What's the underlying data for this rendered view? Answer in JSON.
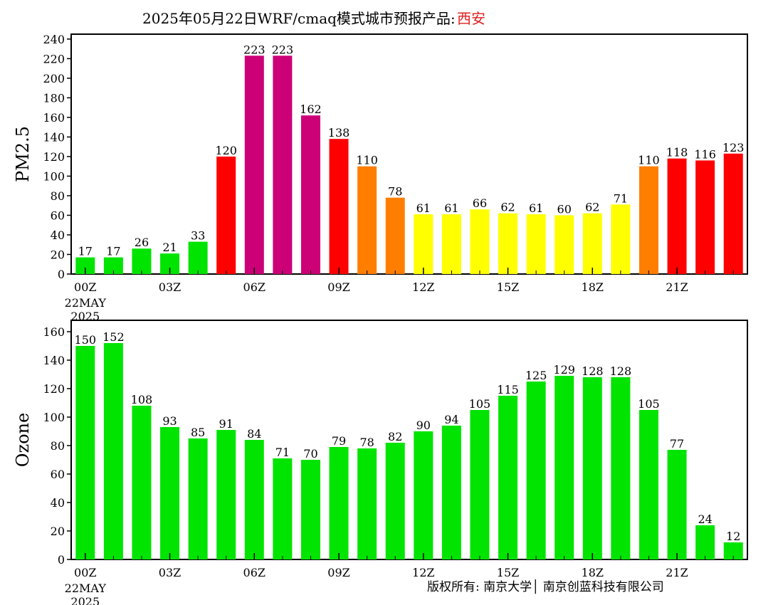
{
  "title": {
    "main": "2025年05月22日WRF/cmaq模式城市预报产品:",
    "city": "西安",
    "city_color": "#e02020"
  },
  "footer": {
    "copyright": "版权所有: 南京大学│ 南京创蓝科技有限公司"
  },
  "chart_data": [
    {
      "type": "bar",
      "ylabel": "PM2.5",
      "ylim": [
        0,
        245
      ],
      "yticks": [
        0,
        20,
        40,
        60,
        80,
        100,
        120,
        140,
        160,
        180,
        200,
        220,
        240
      ],
      "x_tick_labels": [
        "00Z",
        "03Z",
        "06Z",
        "09Z",
        "12Z",
        "15Z",
        "18Z",
        "21Z"
      ],
      "x_tick_hours": [
        0,
        3,
        6,
        9,
        12,
        15,
        18,
        21
      ],
      "date_label": [
        "22MAY",
        "2025"
      ],
      "hours": [
        0,
        1,
        2,
        3,
        4,
        5,
        6,
        7,
        8,
        9,
        10,
        11,
        12,
        13,
        14,
        15,
        16,
        17,
        18,
        19,
        20,
        21,
        22,
        23
      ],
      "values": [
        17,
        17,
        26,
        21,
        33,
        120,
        223,
        223,
        162,
        138,
        110,
        78,
        61,
        61,
        66,
        62,
        61,
        60,
        62,
        71,
        110,
        118,
        116,
        123
      ],
      "bar_colors": [
        "#00e400",
        "#00e400",
        "#00e400",
        "#00e400",
        "#00e400",
        "#ff0000",
        "#cc0077",
        "#cc0077",
        "#cc0077",
        "#ff0000",
        "#ff7e00",
        "#ff7e00",
        "#ffff00",
        "#ffff00",
        "#ffff00",
        "#ffff00",
        "#ffff00",
        "#ffff00",
        "#ffff00",
        "#ffff00",
        "#ff7e00",
        "#ff0000",
        "#ff0000",
        "#ff0000"
      ]
    },
    {
      "type": "bar",
      "ylabel": "Ozone",
      "ylim": [
        0,
        168
      ],
      "yticks": [
        0,
        20,
        40,
        60,
        80,
        100,
        120,
        140,
        160
      ],
      "x_tick_labels": [
        "00Z",
        "03Z",
        "06Z",
        "09Z",
        "12Z",
        "15Z",
        "18Z",
        "21Z"
      ],
      "x_tick_hours": [
        0,
        3,
        6,
        9,
        12,
        15,
        18,
        21
      ],
      "date_label": [
        "22MAY",
        "2025"
      ],
      "hours": [
        0,
        1,
        2,
        3,
        4,
        5,
        6,
        7,
        8,
        9,
        10,
        11,
        12,
        13,
        14,
        15,
        16,
        17,
        18,
        19,
        20,
        21,
        22,
        23
      ],
      "values": [
        150,
        152,
        108,
        93,
        85,
        91,
        84,
        71,
        70,
        79,
        78,
        82,
        90,
        94,
        105,
        115,
        125,
        129,
        128,
        128,
        105,
        77,
        24,
        12
      ],
      "bar_color": "#00e400"
    }
  ]
}
